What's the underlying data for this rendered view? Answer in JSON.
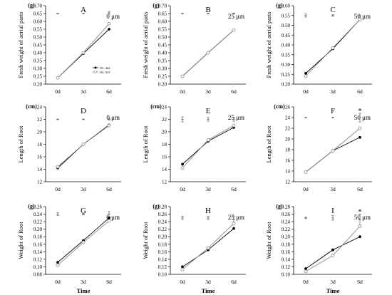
{
  "figure": {
    "legend": [
      "Wt, 4d2",
      "Wt, 025"
    ],
    "colors": {
      "series_a": "#000000",
      "series_b": "#8a8a8a",
      "axis": "#000000"
    }
  },
  "chart_data": [
    {
      "type": "line",
      "panel": "A",
      "label": "A",
      "conc": "0 μm",
      "unit": "(g)",
      "ylabel": "Fresh weight of aerial parts",
      "xlabel": "",
      "categories": [
        "0d",
        "3d",
        "6d"
      ],
      "ylim": [
        0.2,
        0.7
      ],
      "yticks": [
        "0.20",
        "0.25",
        "0.30",
        "0.35",
        "0.40",
        "0.45",
        "0.50",
        "0.55",
        "0.60",
        "0.65",
        "0.70"
      ],
      "series": [
        {
          "values": [
            0.24,
            0.395,
            0.55
          ]
        },
        {
          "values": [
            0.24,
            0.4,
            0.585
          ]
        }
      ],
      "errorbars": [
        {
          "pos": 0,
          "value": 0.65,
          "err": 0.002
        },
        {
          "pos": 1,
          "value": 0.65,
          "err": 0.002
        },
        {
          "pos": 2,
          "value": 0.655,
          "err": 0.008
        }
      ],
      "stars": []
    },
    {
      "type": "line",
      "panel": "B",
      "label": "B",
      "conc": "25 μm",
      "unit": "(g)",
      "ylabel": "Fresh weight of aerial parts",
      "xlabel": "",
      "categories": [
        "0d",
        "3d",
        "6d"
      ],
      "ylim": [
        0.2,
        0.7
      ],
      "yticks": [
        "0.20",
        "0.25",
        "0.30",
        "0.35",
        "0.40",
        "0.45",
        "0.50",
        "0.55",
        "0.60",
        "0.65",
        "0.70"
      ],
      "series": [
        {
          "values": [
            0.25,
            0.4,
            0.545
          ]
        },
        {
          "values": [
            0.25,
            0.4,
            0.545
          ]
        }
      ],
      "errorbars": [
        {
          "pos": 0,
          "value": 0.65,
          "err": 0.002
        },
        {
          "pos": 1,
          "value": 0.65,
          "err": 0.002
        },
        {
          "pos": 2,
          "value": 0.65,
          "err": 0.002
        }
      ],
      "stars": []
    },
    {
      "type": "line",
      "panel": "C",
      "label": "C",
      "conc": "50 μm",
      "unit": "(g)",
      "ylabel": "Fresh weight of aerial parts",
      "xlabel": "",
      "categories": [
        "0d",
        "3d",
        "6d"
      ],
      "ylim": [
        0.2,
        0.6
      ],
      "yticks": [
        "0.20",
        "0.25",
        "0.30",
        "0.35",
        "0.40",
        "0.45",
        "0.50",
        "0.55",
        "0.60"
      ],
      "series": [
        {
          "values": [
            0.255,
            0.38,
            0.53
          ]
        },
        {
          "values": [
            0.24,
            0.385,
            0.53
          ]
        }
      ],
      "errorbars": [
        {
          "pos": 0,
          "value": 0.55,
          "err": 0.008
        },
        {
          "pos": 1,
          "value": 0.55,
          "err": 0.004
        },
        {
          "pos": 2,
          "value": 0.545,
          "err": 0.006
        }
      ],
      "stars": []
    },
    {
      "type": "line",
      "panel": "D",
      "label": "D",
      "conc": "0 μm",
      "unit": "(cm)",
      "ylabel": "Length of Root",
      "xlabel": "",
      "categories": [
        "0d",
        "3d",
        "6d"
      ],
      "ylim": [
        12,
        24
      ],
      "yticks": [
        "12",
        "14",
        "16",
        "18",
        "20",
        "22",
        "24"
      ],
      "series": [
        {
          "values": [
            14.2,
            18.0,
            21.1
          ]
        },
        {
          "values": [
            14.4,
            18.0,
            21.0
          ]
        }
      ],
      "errorbars": [
        {
          "pos": 0,
          "value": 22.0,
          "err": 0.05
        },
        {
          "pos": 1,
          "value": 22.0,
          "err": 0.05
        },
        {
          "pos": 2,
          "value": 22.0,
          "err": 0.1
        }
      ],
      "stars": []
    },
    {
      "type": "line",
      "panel": "E",
      "label": "E",
      "conc": "25 μm",
      "unit": "(cm)",
      "ylabel": "Length of Root",
      "xlabel": "",
      "categories": [
        "0d",
        "3d",
        "6d"
      ],
      "ylim": [
        12,
        24
      ],
      "yticks": [
        "12",
        "14",
        "16",
        "18",
        "20",
        "22",
        "24"
      ],
      "series": [
        {
          "values": [
            14.8,
            18.5,
            20.7
          ]
        },
        {
          "values": [
            14.2,
            18.7,
            21.0
          ]
        }
      ],
      "errorbars": [
        {
          "pos": 0,
          "value": 22.0,
          "err": 0.4
        },
        {
          "pos": 1,
          "value": 22.0,
          "err": 0.3
        },
        {
          "pos": 2,
          "value": 22.0,
          "err": 0.3
        }
      ],
      "stars": []
    },
    {
      "type": "line",
      "panel": "F",
      "label": "F",
      "conc": "50 μm",
      "unit": "(cm)",
      "ylabel": "Length of Root",
      "xlabel": "",
      "categories": [
        "0d",
        "3d",
        "6d"
      ],
      "ylim": [
        12,
        26
      ],
      "yticks": [
        "12",
        "14",
        "16",
        "18",
        "20",
        "22",
        "24",
        "26"
      ],
      "series": [
        {
          "values": [
            13.8,
            17.8,
            20.3
          ]
        },
        {
          "values": [
            13.8,
            17.8,
            22.0
          ]
        }
      ],
      "errorbars": [
        {
          "pos": 0,
          "value": 24.0,
          "err": 0.05
        },
        {
          "pos": 1,
          "value": 24.0,
          "err": 0.05
        },
        {
          "pos": 2,
          "value": 24.0,
          "err": 0.8
        }
      ],
      "stars": [
        {
          "pos": 2,
          "value": 25.2
        }
      ]
    },
    {
      "type": "line",
      "panel": "G",
      "label": "G",
      "conc": "0 μm",
      "unit": "(g)",
      "ylabel": "Weight of Root",
      "xlabel": "Time",
      "categories": [
        "0d",
        "3d",
        "6d"
      ],
      "ylim": [
        0.08,
        0.26
      ],
      "yticks": [
        "0.08",
        "0.10",
        "0.12",
        "0.14",
        "0.16",
        "0.18",
        "0.20",
        "0.22",
        "0.24",
        "0.26"
      ],
      "series": [
        {
          "values": [
            0.112,
            0.17,
            0.23
          ]
        },
        {
          "values": [
            0.104,
            0.165,
            0.222
          ]
        }
      ],
      "errorbars": [
        {
          "pos": 0,
          "value": 0.24,
          "err": 0.004
        },
        {
          "pos": 1,
          "value": 0.24,
          "err": 0.002
        },
        {
          "pos": 2,
          "value": 0.24,
          "err": 0.007
        }
      ],
      "stars": []
    },
    {
      "type": "line",
      "panel": "H",
      "label": "H",
      "conc": "25 μm",
      "unit": "(g)",
      "ylabel": "Weight of Root",
      "xlabel": "Time",
      "categories": [
        "0d",
        "3d",
        "6d"
      ],
      "ylim": [
        0.1,
        0.28
      ],
      "yticks": [
        "0.10",
        "0.12",
        "0.14",
        "0.16",
        "0.18",
        "0.20",
        "0.22",
        "0.24",
        "0.26",
        "0.28"
      ],
      "series": [
        {
          "values": [
            0.12,
            0.165,
            0.222
          ]
        },
        {
          "values": [
            0.113,
            0.17,
            0.235
          ]
        }
      ],
      "errorbars": [
        {
          "pos": 0,
          "value": 0.25,
          "err": 0.004
        },
        {
          "pos": 1,
          "value": 0.25,
          "err": 0.004
        },
        {
          "pos": 2,
          "value": 0.245,
          "err": 0.01
        }
      ],
      "stars": []
    },
    {
      "type": "line",
      "panel": "I",
      "label": "I",
      "conc": "50 μm",
      "unit": "(g)",
      "ylabel": "Weight of Root",
      "xlabel": "Time",
      "categories": [
        "0d",
        "3d",
        "6d"
      ],
      "ylim": [
        0.1,
        0.28
      ],
      "yticks": [
        "0.10",
        "0.12",
        "0.14",
        "0.16",
        "0.18",
        "0.20",
        "0.22",
        "0.24",
        "0.26",
        "0.28"
      ],
      "series": [
        {
          "values": [
            0.115,
            0.165,
            0.2
          ]
        },
        {
          "values": [
            0.108,
            0.15,
            0.228
          ]
        }
      ],
      "errorbars": [
        {
          "pos": 0,
          "value": 0.25,
          "err": 0.002
        },
        {
          "pos": 1,
          "value": 0.25,
          "err": 0.006
        },
        {
          "pos": 2,
          "value": 0.245,
          "err": 0.015
        }
      ],
      "stars": [
        {
          "pos": 2,
          "value": 0.266
        }
      ]
    }
  ]
}
